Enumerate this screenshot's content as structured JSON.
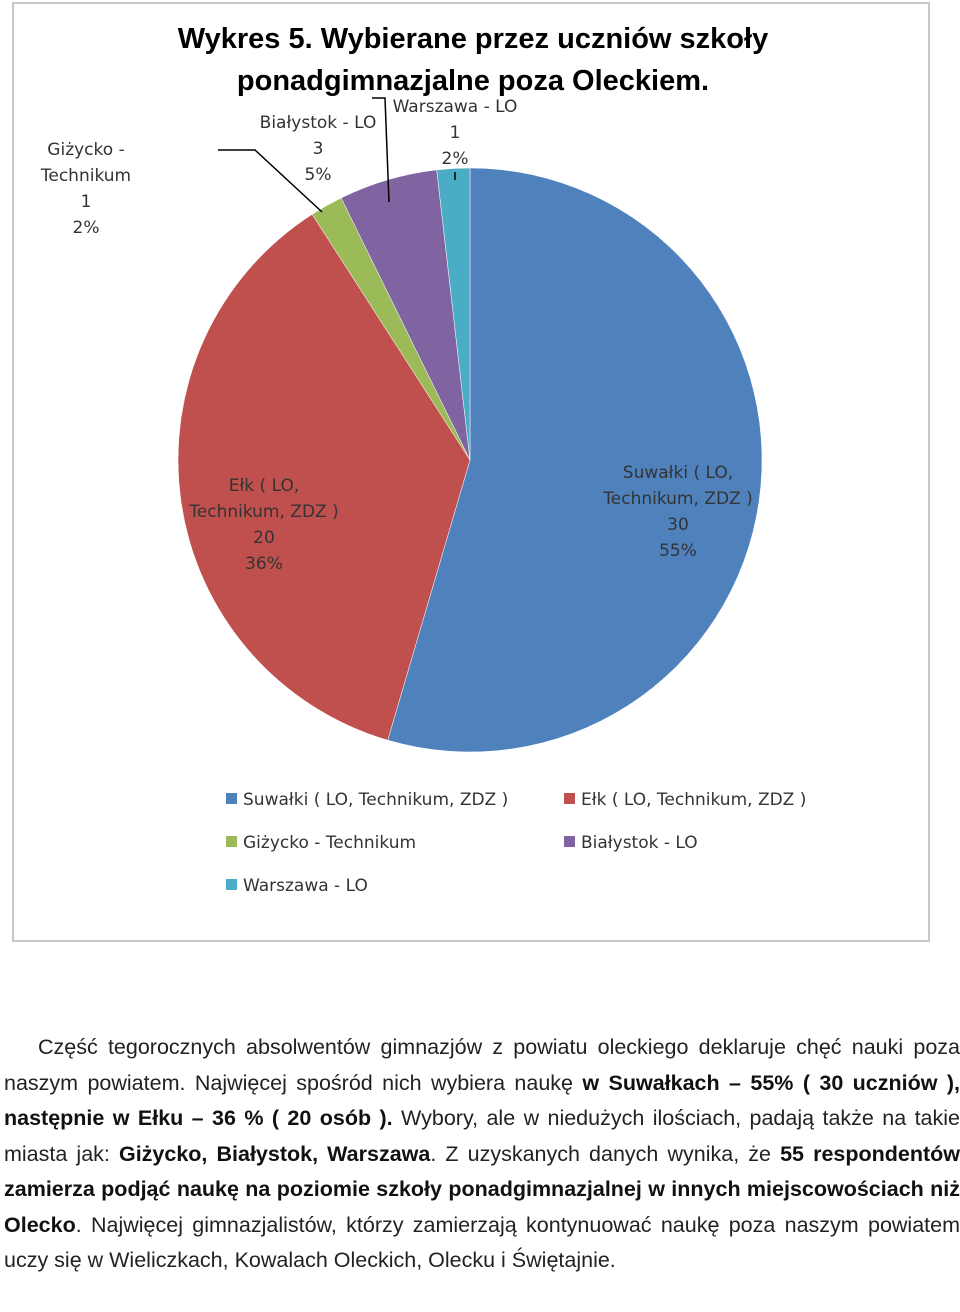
{
  "chart_data": {
    "type": "pie",
    "title": "Wykres 5. Wybierane przez uczniów szkoły ponadgimnazjalne poza Oleckiem.",
    "title_lines": [
      "Wykres 5. Wybierane przez uczniów szkoły",
      "ponadgimnazjalne  poza Oleckiem."
    ],
    "categories": [
      "Suwałki ( LO, Technikum, ZDZ )",
      "Ełk ( LO, Technikum, ZDZ )",
      "Giżycko - Technikum",
      "Białystok - LO",
      "Warszawa - LO"
    ],
    "values": [
      30,
      20,
      1,
      3,
      1
    ],
    "percentages": [
      "55%",
      "36%",
      "2%",
      "5%",
      "2%"
    ],
    "colors": [
      "#4F81BD",
      "#C0504D",
      "#9BBB59",
      "#8064A2",
      "#4BACC6"
    ],
    "data_labels": [
      {
        "lines": [
          "Suwałki ( LO,",
          "Technikum, ZDZ )",
          "30",
          "55%"
        ]
      },
      {
        "lines": [
          "Ełk ( LO,",
          "Technikum, ZDZ )",
          "20",
          "36%"
        ]
      },
      {
        "lines": [
          "Giżycko -",
          "Technikum",
          "1",
          "2%"
        ]
      },
      {
        "lines": [
          "Białystok - LO",
          "3",
          "5%"
        ]
      },
      {
        "lines": [
          "Warszawa - LO",
          "1",
          "2%"
        ]
      }
    ],
    "legend": "bottom",
    "start_angle_deg": 0,
    "direction": "clockwise"
  },
  "paragraph": {
    "segments": [
      {
        "text": "Część tegorocznych absolwentów  gimnazjów z powiatu oleckiego deklaruje chęć nauki poza naszym powiatem. Najwięcej  spośród  nich wybiera naukę ",
        "bold": false
      },
      {
        "text": "w Suwałkach – 55% ( 30 uczniów ), następnie w Ełku – 36 % ( 20 osób ).",
        "bold": true
      },
      {
        "text": " Wybory, ale w niedużych ilościach, padają także na takie miasta jak: ",
        "bold": false
      },
      {
        "text": "Giżycko, Białystok, Warszawa",
        "bold": true
      },
      {
        "text": ". Z uzyskanych danych wynika, że ",
        "bold": false
      },
      {
        "text": "55 respondentów zamierza podjąć naukę na poziomie szkoły ponadgimnazjalnej w innych miejscowościach niż Olecko",
        "bold": true
      },
      {
        "text": ". Najwięcej gimnazjalistów, którzy zamierzają kontynuować naukę poza naszym powiatem uczy się w Wieliczkach, Kowalach Oleckich, Olecku  i Świętajnie.",
        "bold": false
      }
    ]
  }
}
